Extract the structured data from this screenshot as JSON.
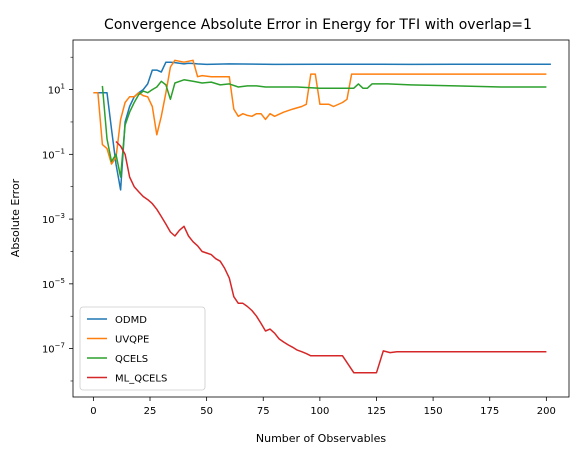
{
  "chart_data": {
    "type": "line",
    "title": "Convergence Absolute Error in Energy for TFI with overlap=1",
    "xlabel": "Number of Observables",
    "ylabel": "Absolute Error",
    "xlim": [
      -9,
      210
    ],
    "ylim": [
      3.2e-09,
      340
    ],
    "yscale": "log",
    "grid": false,
    "legend_position": "lower-left",
    "xticks": [
      {
        "value": 0,
        "label": "0"
      },
      {
        "value": 25,
        "label": "25"
      },
      {
        "value": 50,
        "label": "50"
      },
      {
        "value": 75,
        "label": "75"
      },
      {
        "value": 100,
        "label": "100"
      },
      {
        "value": 125,
        "label": "125"
      },
      {
        "value": 150,
        "label": "150"
      },
      {
        "value": 175,
        "label": "175"
      },
      {
        "value": 200,
        "label": "200"
      }
    ],
    "yticks": [
      {
        "value": 10,
        "base": "10",
        "exp": "1"
      },
      {
        "value": 0.1,
        "base": "10",
        "exp": "−1"
      },
      {
        "value": 0.001,
        "base": "10",
        "exp": "−3"
      },
      {
        "value": 1e-05,
        "base": "10",
        "exp": "−5"
      },
      {
        "value": 1e-07,
        "base": "10",
        "exp": "−7"
      }
    ],
    "series": [
      {
        "name": "ODMD",
        "color": "#1f77b4",
        "x": [
          0,
          2,
          4,
          6,
          8,
          10,
          12,
          14,
          16,
          18,
          20,
          22,
          24,
          26,
          28,
          30,
          32,
          34,
          36,
          38,
          40,
          42,
          44,
          46,
          50,
          60,
          80,
          100,
          120,
          140,
          160,
          180,
          202
        ],
        "y": [
          8,
          8,
          8,
          8,
          0.6,
          0.05,
          0.008,
          1,
          3,
          6,
          8,
          10,
          15,
          40,
          40,
          35,
          70,
          70,
          68,
          65,
          62,
          65,
          64,
          62,
          60,
          62,
          60,
          61,
          61,
          60,
          61,
          61,
          61
        ]
      },
      {
        "name": "UVQPE",
        "color": "#ff7f0e",
        "x": [
          0,
          2,
          4,
          6,
          8,
          10,
          12,
          14,
          16,
          18,
          20,
          22,
          24,
          26,
          28,
          30,
          32,
          34,
          36,
          40,
          44,
          46,
          48,
          52,
          56,
          60,
          62,
          64,
          66,
          68,
          70,
          72,
          74,
          76,
          78,
          80,
          84,
          88,
          92,
          94,
          96,
          98,
          100,
          104,
          106,
          110,
          112,
          114,
          130,
          160,
          200
        ],
        "y": [
          8,
          8,
          0.2,
          0.15,
          0.05,
          0.08,
          1.2,
          4,
          6,
          6,
          8,
          6.5,
          6,
          3,
          0.4,
          1.5,
          8,
          50,
          80,
          70,
          80,
          25,
          27,
          25,
          25,
          25,
          2.5,
          1.5,
          1.8,
          1.6,
          1.5,
          1.8,
          1.8,
          1.2,
          1.8,
          1.5,
          2,
          2.5,
          3,
          3.5,
          30,
          30,
          3.5,
          3.5,
          3,
          4,
          5,
          30,
          30,
          30,
          30
        ]
      },
      {
        "name": "QCELS",
        "color": "#2ca02c",
        "x": [
          4,
          6,
          8,
          10,
          12,
          14,
          16,
          18,
          20,
          22,
          24,
          26,
          28,
          30,
          32,
          34,
          36,
          40,
          44,
          48,
          52,
          56,
          60,
          64,
          68,
          72,
          76,
          80,
          90,
          100,
          110,
          115,
          117,
          119,
          121,
          123,
          130,
          140,
          160,
          180,
          200
        ],
        "y": [
          13,
          0.3,
          0.06,
          0.1,
          0.02,
          0.8,
          2,
          4,
          7,
          9,
          8,
          10,
          12,
          18,
          14,
          5,
          16,
          20,
          18,
          16,
          17,
          14,
          15,
          12,
          13,
          13,
          12,
          12,
          12,
          11,
          11,
          11,
          15,
          11,
          11,
          15,
          15,
          14,
          13,
          12,
          12
        ]
      },
      {
        "name": "ML_QCELS",
        "color": "#d62728",
        "x": [
          10,
          12,
          14,
          16,
          18,
          20,
          22,
          24,
          26,
          28,
          30,
          32,
          34,
          36,
          38,
          40,
          42,
          44,
          46,
          48,
          50,
          52,
          54,
          56,
          58,
          60,
          62,
          64,
          66,
          68,
          70,
          72,
          74,
          76,
          78,
          80,
          82,
          84,
          86,
          88,
          90,
          92,
          94,
          96,
          98,
          100,
          105,
          110,
          115,
          120,
          125,
          128,
          131,
          134,
          137,
          140,
          160,
          180,
          200
        ],
        "y": [
          0.25,
          0.18,
          0.1,
          0.02,
          0.01,
          0.007,
          0.005,
          0.004,
          0.003,
          0.002,
          0.0012,
          0.0007,
          0.0004,
          0.0003,
          0.00045,
          0.0006,
          0.0003,
          0.0002,
          0.00015,
          0.0001,
          9e-05,
          8e-05,
          6e-05,
          5e-05,
          3e-05,
          1.5e-05,
          4e-06,
          2.5e-06,
          2.5e-06,
          2e-06,
          1.5e-06,
          1e-06,
          6e-07,
          3.5e-07,
          4e-07,
          3e-07,
          2e-07,
          1.6e-07,
          1.3e-07,
          1.1e-07,
          9e-08,
          8e-08,
          7e-08,
          6e-08,
          6e-08,
          6e-08,
          6e-08,
          6e-08,
          1.8e-08,
          1.8e-08,
          1.8e-08,
          8.5e-08,
          7.5e-08,
          8e-08,
          8e-08,
          8e-08,
          8e-08,
          8e-08,
          8e-08
        ]
      }
    ]
  }
}
